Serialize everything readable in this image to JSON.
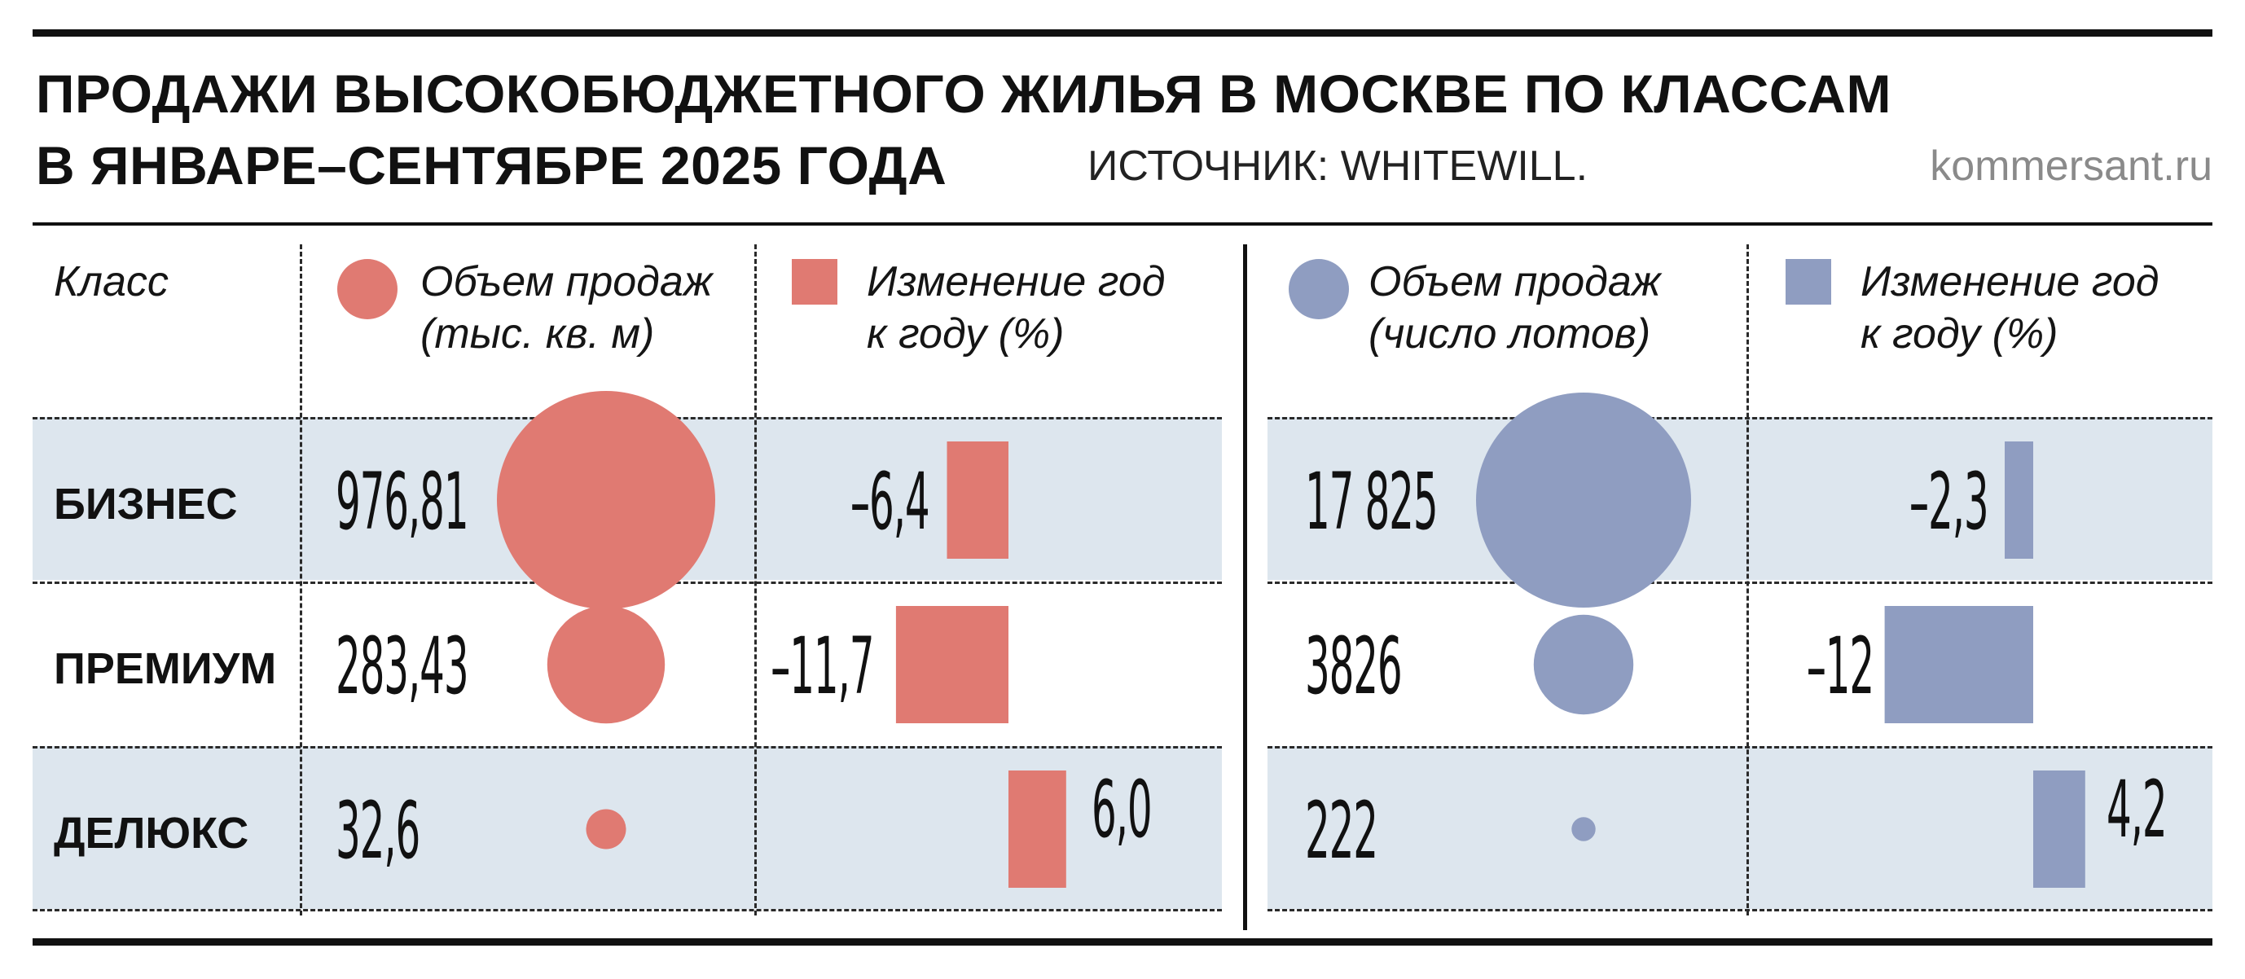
{
  "title_line1": "ПРОДАЖИ ВЫСОКОБЮДЖЕТНОГО ЖИЛЬЯ В МОСКВЕ ПО КЛАССАМ",
  "title_line2": "В ЯНВАРЕ–СЕНТЯБРЕ 2025 ГОДА",
  "source": "ИСТОЧНИК: WHITEWILL.",
  "site": "kommersant.ru",
  "headers": {
    "class": "Класс",
    "area_volume": [
      "Объем продаж",
      "(тыс. кв. м)"
    ],
    "area_change": [
      "Изменение год",
      "к году (%)"
    ],
    "lots_volume": [
      "Объем продаж",
      "(число лотов)"
    ],
    "lots_change": [
      "Изменение год",
      "к году (%)"
    ]
  },
  "colors": {
    "area": "#e07a72",
    "lots": "#8f9dc1",
    "band": "#dde6ee"
  },
  "chart_data": [
    {
      "type": "bubble",
      "categories": [
        "БИЗНЕС",
        "ПРЕМИУМ",
        "ДЕЛЮКС"
      ],
      "series": [
        {
          "name": "Объем продаж (тыс. кв. м)",
          "values": [
            976.81,
            283.43,
            32.6
          ]
        }
      ],
      "labels": [
        "976,81",
        "283,43",
        "32,6"
      ]
    },
    {
      "type": "bar",
      "categories": [
        "БИЗНЕС",
        "ПРЕМИУМ",
        "ДЕЛЮКС"
      ],
      "series": [
        {
          "name": "Изменение год к году (%)",
          "values": [
            -6.4,
            -11.7,
            6.0
          ]
        }
      ],
      "labels": [
        "–6,4",
        "–11,7",
        "6,0"
      ]
    },
    {
      "type": "bubble",
      "categories": [
        "БИЗНЕС",
        "ПРЕМИУМ",
        "ДЕЛЮКС"
      ],
      "series": [
        {
          "name": "Объем продаж (число лотов)",
          "values": [
            17825,
            3826,
            222
          ]
        }
      ],
      "labels": [
        "17 825",
        "3826",
        "222"
      ]
    },
    {
      "type": "bar",
      "categories": [
        "БИЗНЕС",
        "ПРЕМИУМ",
        "ДЕЛЮКС"
      ],
      "series": [
        {
          "name": "Изменение год к году (%)",
          "values": [
            -2.3,
            -12,
            4.2
          ]
        }
      ],
      "labels": [
        "–2,3",
        "–12",
        "4,2"
      ]
    }
  ]
}
